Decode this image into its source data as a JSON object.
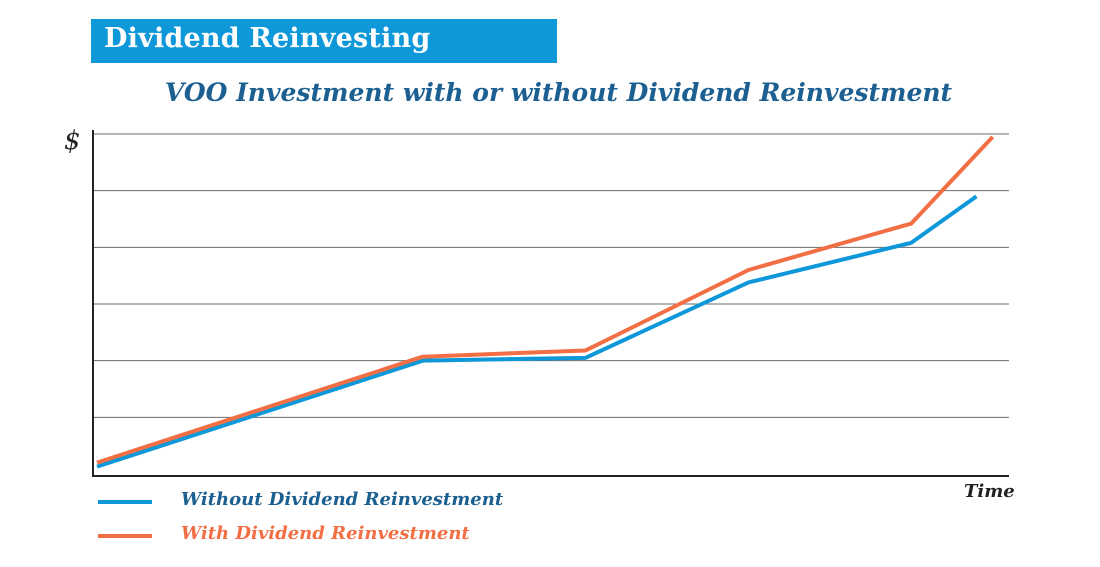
{
  "header": {
    "title": "Dividend Reinvesting",
    "color": "#0e98d9"
  },
  "chart_data": {
    "type": "line",
    "title": "VOO Investment with or without Dividend Reinvestment",
    "xlabel": "Time",
    "ylabel": "$",
    "x": [
      0,
      1,
      2,
      3,
      4,
      5
    ],
    "xlim": [
      0,
      5.6
    ],
    "ylim": [
      0,
      6
    ],
    "grid": true,
    "legend_placement": "bottom-left",
    "series": [
      {
        "name": "Without Dividend Reinvestment",
        "color": "#0e98d9",
        "x": [
          0,
          2,
          3,
          4,
          5,
          5.4
        ],
        "values": [
          0.13,
          2.0,
          2.05,
          3.38,
          4.08,
          4.9
        ]
      },
      {
        "name": "With Dividend Reinvestment",
        "color": "#f26f45",
        "x": [
          0,
          2,
          3,
          4,
          5,
          5.5
        ],
        "values": [
          0.2,
          2.07,
          2.18,
          3.6,
          4.42,
          5.95
        ]
      }
    ]
  }
}
